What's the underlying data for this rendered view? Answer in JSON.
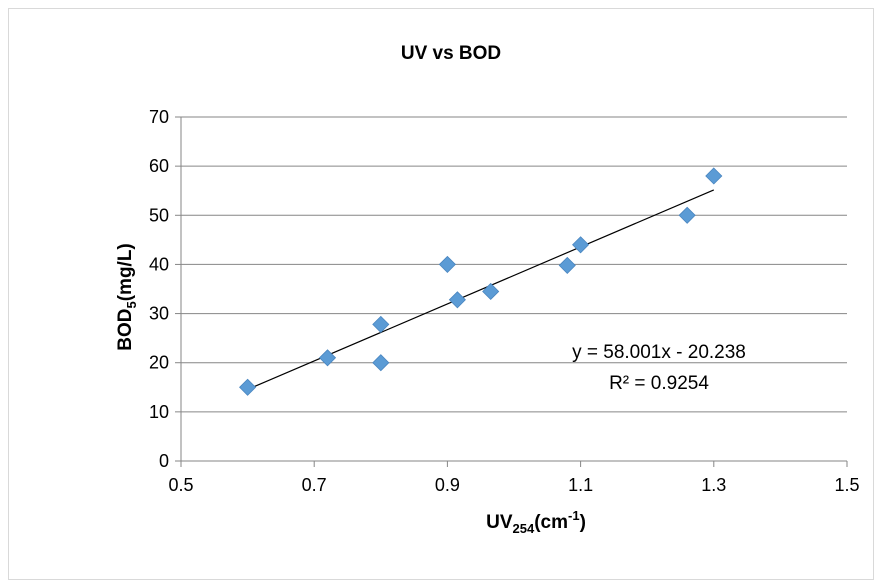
{
  "chart_data": {
    "type": "scatter",
    "title": "UV vs BOD",
    "xlabel": {
      "main": "UV",
      "sub": "254",
      "rest": "(cm",
      "sup": "-1",
      "end": ")"
    },
    "ylabel": {
      "main": "BOD",
      "sub": "5",
      "rest": "(mg/L)"
    },
    "xlim": [
      0.5,
      1.5
    ],
    "ylim": [
      0,
      70
    ],
    "xticks": [
      0.5,
      0.7,
      0.9,
      1.1,
      1.3,
      1.5
    ],
    "yticks": [
      0,
      10,
      20,
      30,
      40,
      50,
      60,
      70
    ],
    "grid": "horizontal",
    "marker": "diamond",
    "color": "#5b9bd5",
    "points": [
      {
        "x": 0.6,
        "y": 15.0
      },
      {
        "x": 0.72,
        "y": 21.0
      },
      {
        "x": 0.8,
        "y": 27.8
      },
      {
        "x": 0.8,
        "y": 20.0
      },
      {
        "x": 0.9,
        "y": 40.0
      },
      {
        "x": 0.915,
        "y": 32.8
      },
      {
        "x": 0.965,
        "y": 34.5
      },
      {
        "x": 1.08,
        "y": 39.8
      },
      {
        "x": 1.1,
        "y": 44.0
      },
      {
        "x": 1.26,
        "y": 50.0
      },
      {
        "x": 1.3,
        "y": 58.0
      }
    ],
    "trendline": {
      "slope": 58.001,
      "intercept": -20.238,
      "x_range": [
        0.6,
        1.3
      ],
      "color": "#000000"
    },
    "annotations": {
      "equation": "y = 58.001x - 20.238",
      "r_squared": "R² = 0.9254"
    }
  }
}
